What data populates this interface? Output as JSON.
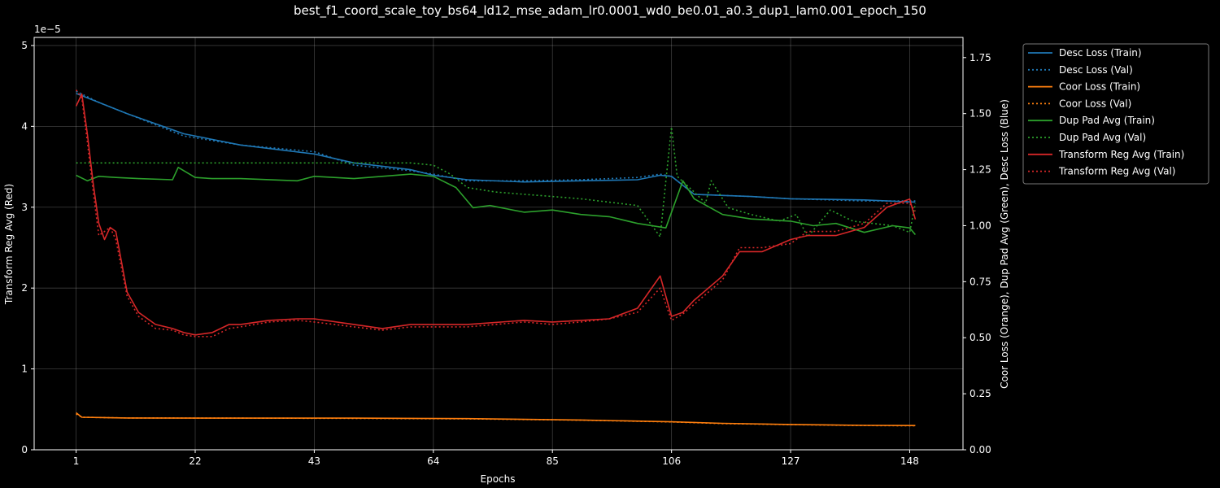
{
  "chart_data": {
    "type": "line",
    "title": "best_f1_coord_scale_toy_bs64_ld12_mse_adam_lr0.0001_wd0_be0.01_a0.3_dup1_lam0.001_epoch_150",
    "xlabel": "Epochs",
    "ylabel_left": "Transform Reg Avg (Red)",
    "ylabel_right": "Coor Loss (Orange), Dup Pad Avg (Green), Desc Loss (Blue)",
    "left_offset_label": "1e−5",
    "x_ticks": [
      1,
      22,
      43,
      64,
      85,
      106,
      127,
      148
    ],
    "xlim": [
      -6.4,
      157.4
    ],
    "ylim_left": [
      0,
      5.1
    ],
    "ylim_right": [
      0,
      1.84
    ],
    "y_ticks_left": [
      "0",
      "1",
      "2",
      "3",
      "4",
      "5"
    ],
    "y_ticks_right": [
      "0.00",
      "0.25",
      "0.50",
      "0.75",
      "1.00",
      "1.25",
      "1.50",
      "1.75"
    ],
    "grid": true,
    "legend_position": "outside right, top",
    "series": [
      {
        "name": "Desc Loss (Train)",
        "axis": "right",
        "color": "#1f77b4",
        "style": "solid",
        "points": [
          [
            1,
            1.59
          ],
          [
            5,
            1.55
          ],
          [
            10,
            1.5
          ],
          [
            20,
            1.41
          ],
          [
            30,
            1.36
          ],
          [
            43,
            1.32
          ],
          [
            50,
            1.28
          ],
          [
            60,
            1.25
          ],
          [
            64,
            1.225
          ],
          [
            70,
            1.205
          ],
          [
            80,
            1.195
          ],
          [
            90,
            1.2
          ],
          [
            100,
            1.205
          ],
          [
            104,
            1.225
          ],
          [
            106,
            1.22
          ],
          [
            110,
            1.14
          ],
          [
            120,
            1.13
          ],
          [
            127,
            1.12
          ],
          [
            140,
            1.115
          ],
          [
            149,
            1.105
          ]
        ]
      },
      {
        "name": "Desc Loss (Val)",
        "axis": "right",
        "color": "#1f77b4",
        "style": "dotted",
        "points": [
          [
            1,
            1.6
          ],
          [
            5,
            1.55
          ],
          [
            10,
            1.5
          ],
          [
            20,
            1.4
          ],
          [
            30,
            1.36
          ],
          [
            43,
            1.33
          ],
          [
            50,
            1.27
          ],
          [
            60,
            1.245
          ],
          [
            64,
            1.23
          ],
          [
            70,
            1.2
          ],
          [
            80,
            1.2
          ],
          [
            90,
            1.205
          ],
          [
            100,
            1.215
          ],
          [
            104,
            1.23
          ],
          [
            106,
            1.22
          ],
          [
            110,
            1.14
          ],
          [
            120,
            1.13
          ],
          [
            127,
            1.12
          ],
          [
            140,
            1.11
          ],
          [
            149,
            1.11
          ]
        ]
      },
      {
        "name": "Coor Loss (Train)",
        "axis": "right",
        "color": "#ff7f0e",
        "style": "solid",
        "points": [
          [
            1,
            0.165
          ],
          [
            2,
            0.145
          ],
          [
            10,
            0.142
          ],
          [
            30,
            0.141
          ],
          [
            50,
            0.141
          ],
          [
            70,
            0.139
          ],
          [
            90,
            0.133
          ],
          [
            106,
            0.125
          ],
          [
            115,
            0.118
          ],
          [
            127,
            0.113
          ],
          [
            140,
            0.109
          ],
          [
            149,
            0.108
          ]
        ]
      },
      {
        "name": "Coor Loss (Val)",
        "axis": "right",
        "color": "#ff7f0e",
        "style": "dotted",
        "points": [
          [
            1,
            0.16
          ],
          [
            2,
            0.145
          ],
          [
            10,
            0.142
          ],
          [
            30,
            0.141
          ],
          [
            50,
            0.14
          ],
          [
            70,
            0.138
          ],
          [
            90,
            0.132
          ],
          [
            106,
            0.124
          ],
          [
            115,
            0.117
          ],
          [
            127,
            0.112
          ],
          [
            140,
            0.108
          ],
          [
            149,
            0.107
          ]
        ]
      },
      {
        "name": "Dup Pad Avg (Train)",
        "axis": "right",
        "color": "#2ca02c",
        "style": "solid",
        "points": [
          [
            1,
            1.225
          ],
          [
            3,
            1.2
          ],
          [
            5,
            1.22
          ],
          [
            8,
            1.215
          ],
          [
            12,
            1.21
          ],
          [
            18,
            1.205
          ],
          [
            19,
            1.26
          ],
          [
            22,
            1.215
          ],
          [
            25,
            1.21
          ],
          [
            30,
            1.21
          ],
          [
            40,
            1.2
          ],
          [
            43,
            1.22
          ],
          [
            50,
            1.21
          ],
          [
            60,
            1.23
          ],
          [
            64,
            1.22
          ],
          [
            68,
            1.17
          ],
          [
            71,
            1.08
          ],
          [
            74,
            1.09
          ],
          [
            80,
            1.06
          ],
          [
            85,
            1.07
          ],
          [
            90,
            1.05
          ],
          [
            95,
            1.04
          ],
          [
            100,
            1.01
          ],
          [
            105,
            0.99
          ],
          [
            108,
            1.2
          ],
          [
            110,
            1.12
          ],
          [
            115,
            1.05
          ],
          [
            120,
            1.03
          ],
          [
            127,
            1.02
          ],
          [
            131,
            1.0
          ],
          [
            135,
            1.01
          ],
          [
            140,
            0.97
          ],
          [
            145,
            1.0
          ],
          [
            148,
            0.99
          ],
          [
            149,
            0.96
          ]
        ]
      },
      {
        "name": "Dup Pad Avg (Val)",
        "axis": "right",
        "color": "#2ca02c",
        "style": "dotted",
        "points": [
          [
            1,
            1.28
          ],
          [
            10,
            1.28
          ],
          [
            20,
            1.28
          ],
          [
            30,
            1.28
          ],
          [
            40,
            1.28
          ],
          [
            50,
            1.28
          ],
          [
            60,
            1.28
          ],
          [
            64,
            1.27
          ],
          [
            67,
            1.23
          ],
          [
            70,
            1.17
          ],
          [
            75,
            1.15
          ],
          [
            80,
            1.14
          ],
          [
            85,
            1.13
          ],
          [
            90,
            1.12
          ],
          [
            100,
            1.09
          ],
          [
            104,
            0.95
          ],
          [
            105,
            1.2
          ],
          [
            106,
            1.44
          ],
          [
            107,
            1.22
          ],
          [
            110,
            1.15
          ],
          [
            112,
            1.1
          ],
          [
            113,
            1.2
          ],
          [
            116,
            1.08
          ],
          [
            120,
            1.05
          ],
          [
            125,
            1.02
          ],
          [
            128,
            1.05
          ],
          [
            130,
            0.95
          ],
          [
            134,
            1.07
          ],
          [
            138,
            1.02
          ],
          [
            145,
            1.0
          ],
          [
            148,
            0.97
          ],
          [
            149,
            1.1
          ]
        ]
      },
      {
        "name": "Transform Reg Avg (Train)",
        "axis": "left",
        "color": "#d62728",
        "style": "solid",
        "points": [
          [
            1,
            4.25
          ],
          [
            2,
            4.4
          ],
          [
            3,
            3.9
          ],
          [
            4,
            3.3
          ],
          [
            5,
            2.8
          ],
          [
            6,
            2.6
          ],
          [
            7,
            2.75
          ],
          [
            8,
            2.7
          ],
          [
            10,
            1.95
          ],
          [
            12,
            1.7
          ],
          [
            15,
            1.55
          ],
          [
            18,
            1.5
          ],
          [
            20,
            1.45
          ],
          [
            22,
            1.42
          ],
          [
            25,
            1.45
          ],
          [
            28,
            1.55
          ],
          [
            30,
            1.55
          ],
          [
            35,
            1.6
          ],
          [
            40,
            1.62
          ],
          [
            43,
            1.62
          ],
          [
            50,
            1.55
          ],
          [
            55,
            1.5
          ],
          [
            60,
            1.55
          ],
          [
            64,
            1.55
          ],
          [
            70,
            1.55
          ],
          [
            80,
            1.6
          ],
          [
            85,
            1.58
          ],
          [
            90,
            1.6
          ],
          [
            95,
            1.62
          ],
          [
            100,
            1.75
          ],
          [
            104,
            2.15
          ],
          [
            106,
            1.65
          ],
          [
            108,
            1.7
          ],
          [
            110,
            1.85
          ],
          [
            115,
            2.15
          ],
          [
            118,
            2.45
          ],
          [
            122,
            2.45
          ],
          [
            127,
            2.6
          ],
          [
            130,
            2.65
          ],
          [
            135,
            2.65
          ],
          [
            140,
            2.75
          ],
          [
            144,
            3.0
          ],
          [
            148,
            3.1
          ],
          [
            149,
            2.85
          ]
        ]
      },
      {
        "name": "Transform Reg Avg (Val)",
        "axis": "left",
        "color": "#d62728",
        "style": "dotted",
        "points": [
          [
            1,
            4.45
          ],
          [
            2,
            4.35
          ],
          [
            3,
            3.8
          ],
          [
            4,
            3.2
          ],
          [
            5,
            2.65
          ],
          [
            6,
            2.7
          ],
          [
            7,
            2.75
          ],
          [
            8,
            2.6
          ],
          [
            10,
            1.9
          ],
          [
            12,
            1.65
          ],
          [
            15,
            1.5
          ],
          [
            18,
            1.48
          ],
          [
            20,
            1.42
          ],
          [
            22,
            1.4
          ],
          [
            25,
            1.4
          ],
          [
            28,
            1.5
          ],
          [
            30,
            1.52
          ],
          [
            35,
            1.58
          ],
          [
            40,
            1.6
          ],
          [
            43,
            1.58
          ],
          [
            50,
            1.52
          ],
          [
            55,
            1.48
          ],
          [
            60,
            1.52
          ],
          [
            64,
            1.52
          ],
          [
            70,
            1.52
          ],
          [
            80,
            1.58
          ],
          [
            85,
            1.55
          ],
          [
            90,
            1.58
          ],
          [
            95,
            1.62
          ],
          [
            100,
            1.7
          ],
          [
            104,
            2.0
          ],
          [
            106,
            1.6
          ],
          [
            108,
            1.68
          ],
          [
            110,
            1.8
          ],
          [
            115,
            2.1
          ],
          [
            118,
            2.5
          ],
          [
            122,
            2.5
          ],
          [
            127,
            2.55
          ],
          [
            130,
            2.7
          ],
          [
            135,
            2.7
          ],
          [
            140,
            2.8
          ],
          [
            144,
            3.05
          ],
          [
            148,
            3.05
          ],
          [
            149,
            2.95
          ]
        ]
      }
    ]
  }
}
